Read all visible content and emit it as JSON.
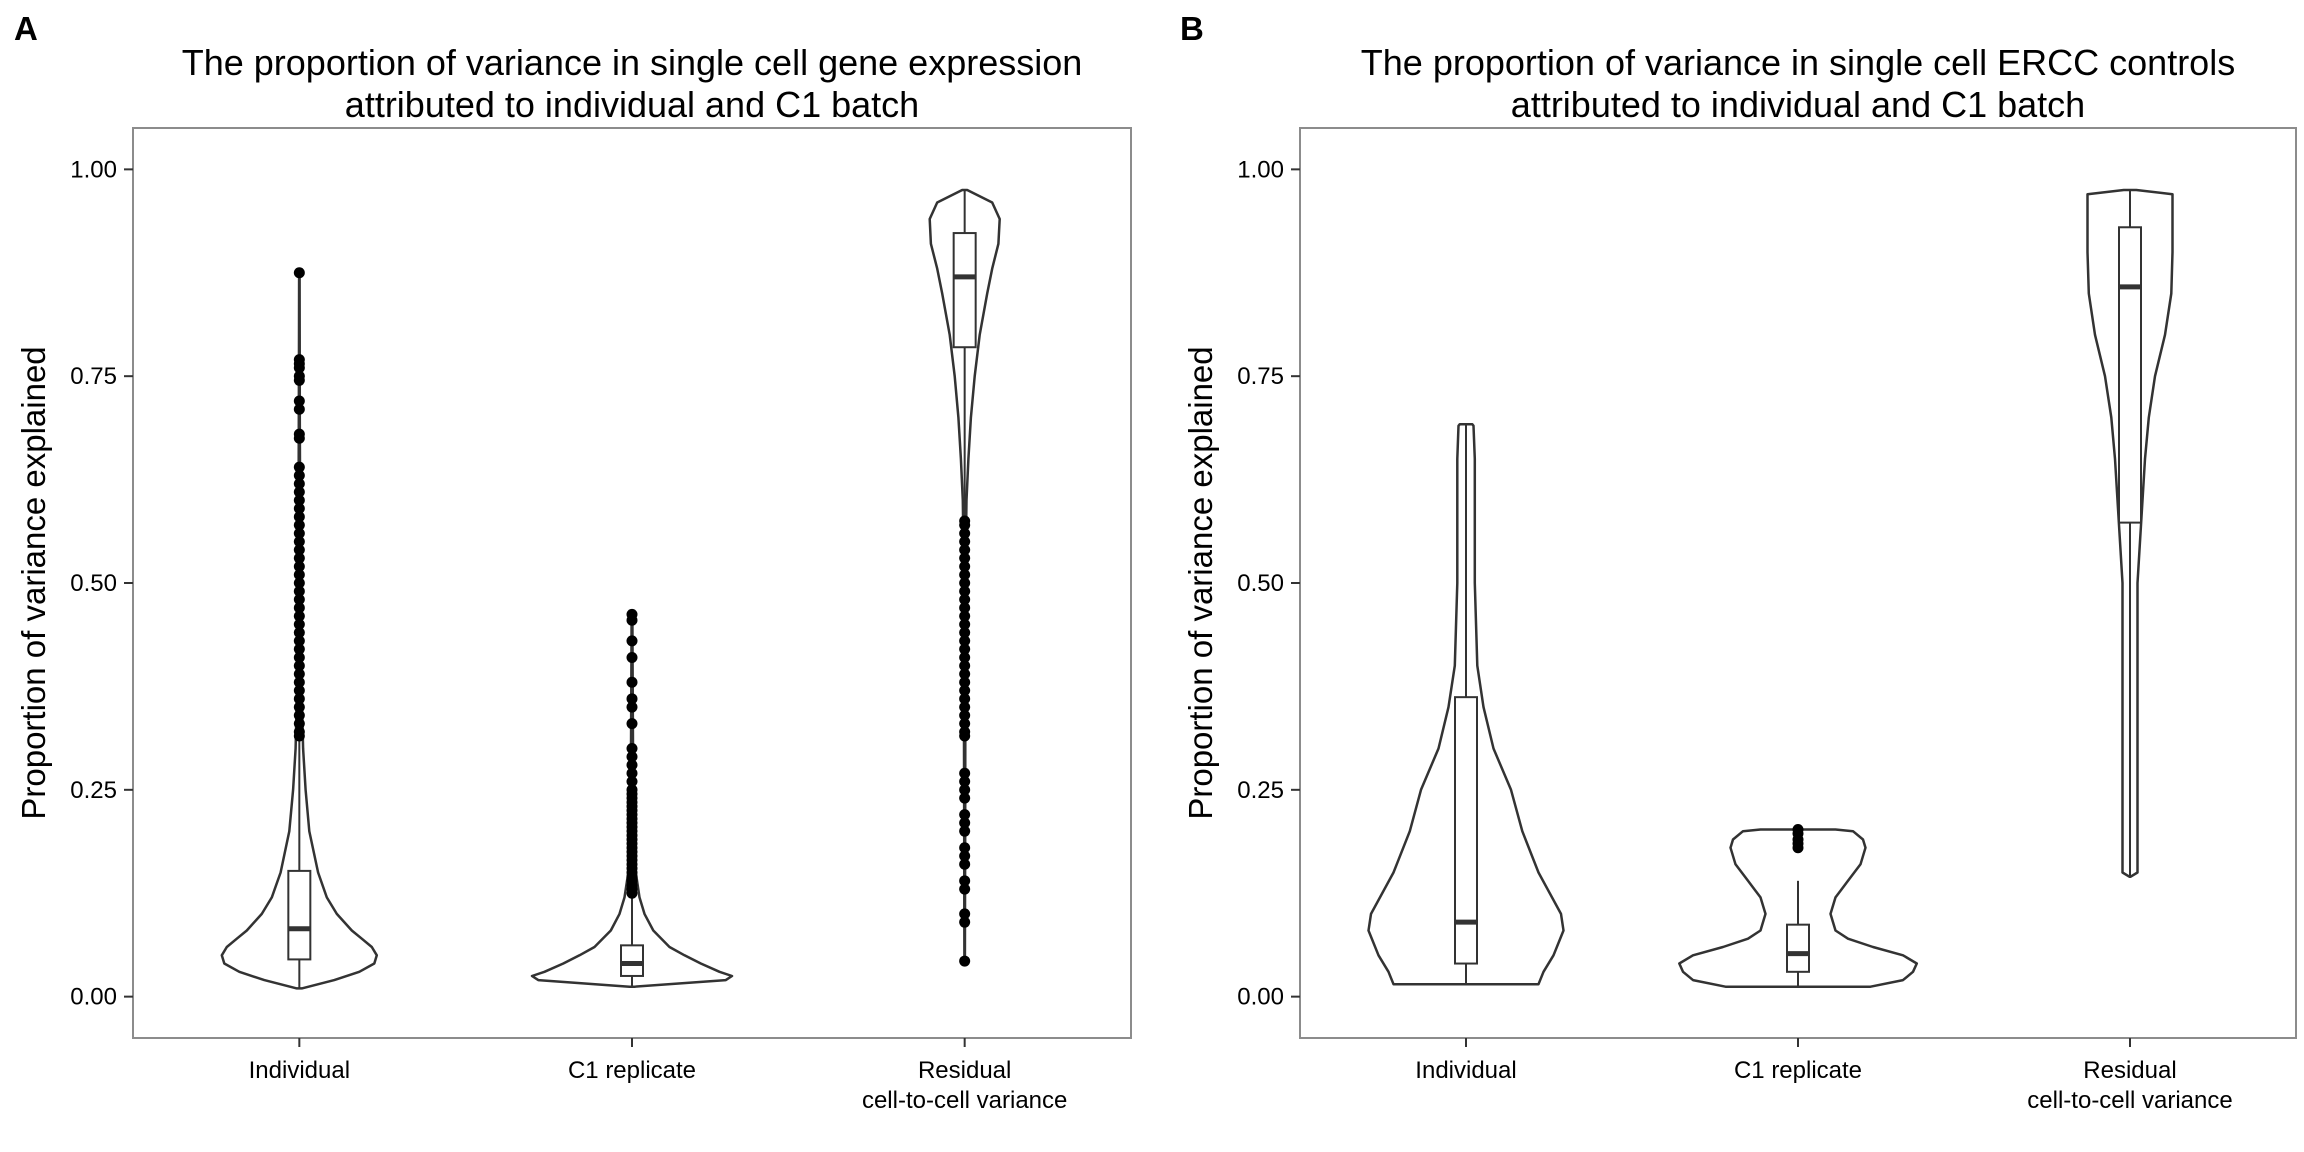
{
  "chart_data": [
    {
      "type": "violin",
      "panel": "A",
      "title": [
        "The proportion of variance in single cell gene expression",
        "attributed to individual and C1 batch"
      ],
      "ylabel": "Proportion of variance explained",
      "xlabel": "",
      "ylim": [
        -0.05,
        1.05
      ],
      "yticks": [
        0.0,
        0.25,
        0.5,
        0.75,
        1.0
      ],
      "ytick_labels": [
        "0.00",
        "0.25",
        "0.50",
        "0.75",
        "1.00"
      ],
      "grid": false,
      "categories": [
        {
          "label": [
            "Individual"
          ],
          "violin": [
            [
              0.01,
              0.02
            ],
            [
              0.02,
              0.28
            ],
            [
              0.03,
              0.48
            ],
            [
              0.04,
              0.6
            ],
            [
              0.05,
              0.62
            ],
            [
              0.06,
              0.58
            ],
            [
              0.07,
              0.5
            ],
            [
              0.08,
              0.42
            ],
            [
              0.1,
              0.3
            ],
            [
              0.12,
              0.22
            ],
            [
              0.15,
              0.15
            ],
            [
              0.2,
              0.08
            ],
            [
              0.25,
              0.05
            ],
            [
              0.3,
              0.03
            ],
            [
              0.4,
              0.015
            ],
            [
              0.5,
              0.01
            ],
            [
              0.6,
              0.006
            ],
            [
              0.7,
              0.004
            ],
            [
              0.8,
              0.003
            ],
            [
              0.875,
              0.002
            ]
          ],
          "box": {
            "lower_whisker": 0.01,
            "q1": 0.045,
            "median": 0.082,
            "q3": 0.152,
            "upper_whisker": 0.31
          },
          "outliers": [
            0.875,
            0.77,
            0.765,
            0.76,
            0.75,
            0.745,
            0.72,
            0.71,
            0.68,
            0.675,
            0.64,
            0.63,
            0.62,
            0.61,
            0.6,
            0.59,
            0.58,
            0.57,
            0.56,
            0.55,
            0.54,
            0.53,
            0.52,
            0.51,
            0.5,
            0.49,
            0.48,
            0.47,
            0.46,
            0.45,
            0.44,
            0.43,
            0.42,
            0.41,
            0.4,
            0.39,
            0.38,
            0.37,
            0.36,
            0.35,
            0.34,
            0.33,
            0.32,
            0.315
          ]
        },
        {
          "label": [
            "C1 replicate"
          ],
          "violin": [
            [
              0.012,
              0.02
            ],
            [
              0.02,
              0.75
            ],
            [
              0.025,
              0.8
            ],
            [
              0.03,
              0.7
            ],
            [
              0.04,
              0.55
            ],
            [
              0.05,
              0.42
            ],
            [
              0.06,
              0.3
            ],
            [
              0.08,
              0.17
            ],
            [
              0.1,
              0.1
            ],
            [
              0.12,
              0.06
            ],
            [
              0.15,
              0.03
            ],
            [
              0.2,
              0.015
            ],
            [
              0.3,
              0.008
            ],
            [
              0.4,
              0.005
            ],
            [
              0.46,
              0.003
            ]
          ],
          "box": {
            "lower_whisker": 0.012,
            "q1": 0.025,
            "median": 0.04,
            "q3": 0.062,
            "upper_whisker": 0.12
          },
          "outliers": [
            0.462,
            0.455,
            0.43,
            0.41,
            0.38,
            0.36,
            0.35,
            0.33,
            0.3,
            0.29,
            0.28,
            0.27,
            0.26,
            0.25,
            0.245,
            0.24,
            0.235,
            0.23,
            0.225,
            0.22,
            0.215,
            0.21,
            0.205,
            0.2,
            0.195,
            0.19,
            0.185,
            0.18,
            0.175,
            0.17,
            0.165,
            0.16,
            0.155,
            0.15,
            0.145,
            0.14,
            0.135,
            0.13,
            0.125
          ]
        },
        {
          "label": [
            "Residual",
            "cell-to-cell variance"
          ],
          "violin": [
            [
              0.04,
              0.002
            ],
            [
              0.1,
              0.003
            ],
            [
              0.2,
              0.004
            ],
            [
              0.3,
              0.005
            ],
            [
              0.4,
              0.006
            ],
            [
              0.5,
              0.008
            ],
            [
              0.55,
              0.01
            ],
            [
              0.6,
              0.015
            ],
            [
              0.65,
              0.03
            ],
            [
              0.7,
              0.05
            ],
            [
              0.75,
              0.08
            ],
            [
              0.8,
              0.12
            ],
            [
              0.85,
              0.18
            ],
            [
              0.88,
              0.22
            ],
            [
              0.91,
              0.27
            ],
            [
              0.94,
              0.28
            ],
            [
              0.96,
              0.22
            ],
            [
              0.975,
              0.02
            ]
          ],
          "box": {
            "lower_whisker": 0.58,
            "q1": 0.785,
            "median": 0.87,
            "q3": 0.923,
            "upper_whisker": 0.975
          },
          "outliers": [
            0.575,
            0.57,
            0.56,
            0.55,
            0.54,
            0.53,
            0.52,
            0.51,
            0.5,
            0.49,
            0.48,
            0.47,
            0.46,
            0.45,
            0.44,
            0.43,
            0.42,
            0.41,
            0.4,
            0.39,
            0.38,
            0.37,
            0.36,
            0.35,
            0.34,
            0.33,
            0.32,
            0.315,
            0.27,
            0.26,
            0.25,
            0.24,
            0.22,
            0.21,
            0.2,
            0.18,
            0.17,
            0.16,
            0.14,
            0.13,
            0.1,
            0.09,
            0.043
          ]
        }
      ]
    },
    {
      "type": "violin",
      "panel": "B",
      "title": [
        "The proportion of variance in single cell ERCC controls",
        "attributed to individual and C1 batch"
      ],
      "ylabel": "Proportion of variance explained",
      "xlabel": "",
      "ylim": [
        -0.05,
        1.05
      ],
      "yticks": [
        0.0,
        0.25,
        0.5,
        0.75,
        1.0
      ],
      "ytick_labels": [
        "0.00",
        "0.25",
        "0.50",
        "0.75",
        "1.00"
      ],
      "grid": false,
      "categories": [
        {
          "label": [
            "Individual"
          ],
          "violin": [
            [
              0.015,
              0.58
            ],
            [
              0.03,
              0.62
            ],
            [
              0.05,
              0.7
            ],
            [
              0.08,
              0.78
            ],
            [
              0.1,
              0.76
            ],
            [
              0.15,
              0.58
            ],
            [
              0.2,
              0.45
            ],
            [
              0.25,
              0.36
            ],
            [
              0.3,
              0.22
            ],
            [
              0.35,
              0.14
            ],
            [
              0.4,
              0.09
            ],
            [
              0.5,
              0.07
            ],
            [
              0.6,
              0.07
            ],
            [
              0.65,
              0.07
            ],
            [
              0.69,
              0.06
            ],
            [
              0.692,
              0.05
            ]
          ],
          "box": {
            "lower_whisker": 0.015,
            "q1": 0.04,
            "median": 0.09,
            "q3": 0.362,
            "upper_whisker": 0.692
          },
          "outliers": []
        },
        {
          "label": [
            "C1 replicate"
          ],
          "violin": [
            [
              0.012,
              0.58
            ],
            [
              0.02,
              0.84
            ],
            [
              0.03,
              0.92
            ],
            [
              0.04,
              0.95
            ],
            [
              0.05,
              0.84
            ],
            [
              0.06,
              0.6
            ],
            [
              0.07,
              0.4
            ],
            [
              0.08,
              0.3
            ],
            [
              0.1,
              0.26
            ],
            [
              0.12,
              0.3
            ],
            [
              0.14,
              0.4
            ],
            [
              0.16,
              0.5
            ],
            [
              0.18,
              0.54
            ],
            [
              0.19,
              0.52
            ],
            [
              0.2,
              0.44
            ],
            [
              0.202,
              0.3
            ]
          ],
          "box": {
            "lower_whisker": 0.012,
            "q1": 0.03,
            "median": 0.052,
            "q3": 0.087,
            "upper_whisker": 0.14
          },
          "outliers": [
            0.202,
            0.197,
            0.19,
            0.185,
            0.18
          ]
        },
        {
          "label": [
            "Residual",
            "cell-to-cell variance"
          ],
          "violin": [
            [
              0.145,
              0.005
            ],
            [
              0.15,
              0.06
            ],
            [
              0.2,
              0.06
            ],
            [
              0.3,
              0.06
            ],
            [
              0.4,
              0.06
            ],
            [
              0.5,
              0.06
            ],
            [
              0.55,
              0.08
            ],
            [
              0.6,
              0.1
            ],
            [
              0.65,
              0.12
            ],
            [
              0.7,
              0.15
            ],
            [
              0.75,
              0.2
            ],
            [
              0.8,
              0.28
            ],
            [
              0.85,
              0.33
            ],
            [
              0.9,
              0.34
            ],
            [
              0.95,
              0.34
            ],
            [
              0.97,
              0.34
            ],
            [
              0.975,
              0.05
            ]
          ],
          "box": {
            "lower_whisker": 0.145,
            "q1": 0.573,
            "median": 0.858,
            "q3": 0.93,
            "upper_whisker": 0.975
          },
          "outliers": []
        }
      ]
    }
  ],
  "colors": {
    "background": "#ffffff",
    "panel_border": "#8c8c8c",
    "line": "#333333",
    "point": "#000000"
  }
}
